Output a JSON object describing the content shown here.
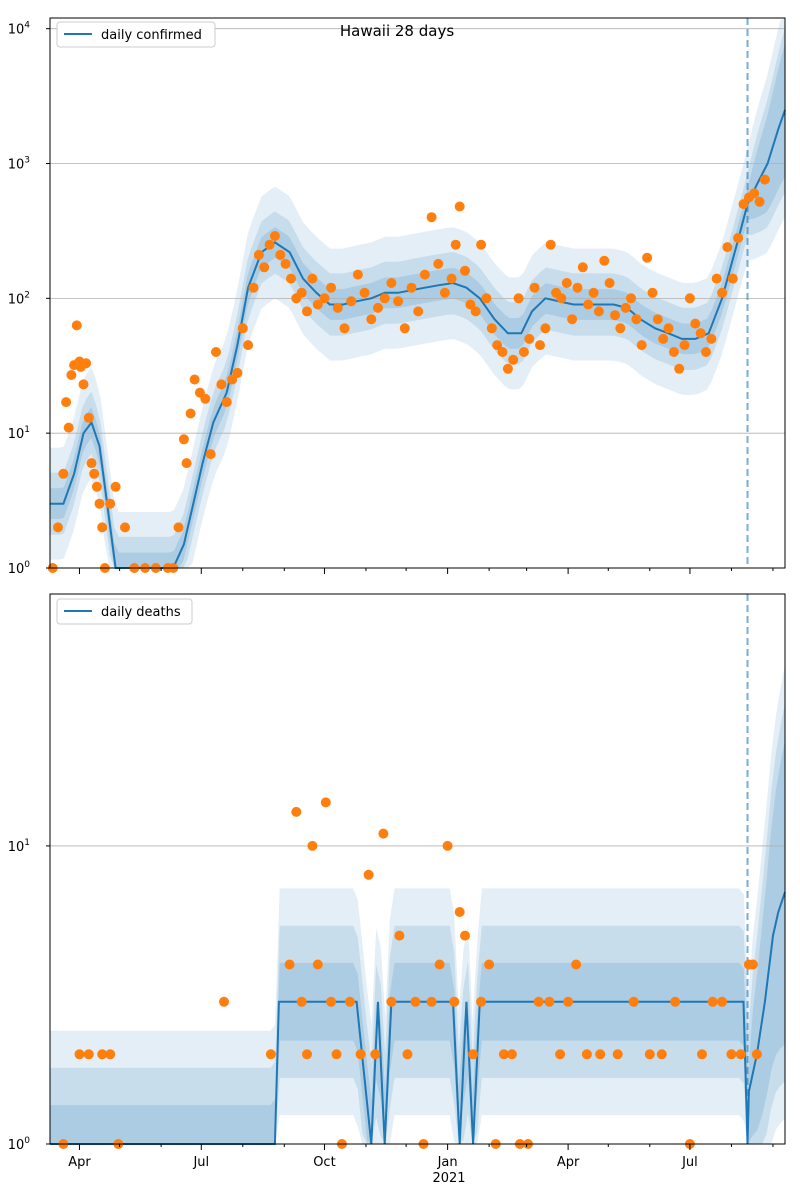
{
  "figure": {
    "title": "Hawaii 28 days",
    "colors": {
      "model": "#1f77b4",
      "observed": "#ff7f0e",
      "band": "#1f77b4",
      "grid": "#b0b0b0",
      "cutoff": "#1f77b4"
    },
    "x_tick_labels": [
      "Apr",
      "Jul",
      "Oct",
      "Jan",
      "Apr",
      "Jul"
    ],
    "x_secondary_label": "2021"
  },
  "chart_data": [
    {
      "type": "line",
      "title": "Hawaii 28 days",
      "legend": "daily confirmed",
      "legend_position": "top-left",
      "y_scale": "log",
      "ylim": [
        1,
        12000
      ],
      "y_tick_labels": [
        "10^0",
        "10^1",
        "10^2",
        "10^3",
        "10^4"
      ],
      "xlim": [
        "2020-03-10",
        "2021-09-10"
      ],
      "forecast_start": "2021-08-13",
      "grid": "horizontal",
      "model_line": {
        "x": [
          "2020-03-10",
          "2020-03-20",
          "2020-03-28",
          "2020-04-04",
          "2020-04-10",
          "2020-04-16",
          "2020-04-20",
          "2020-04-28",
          "2020-05-10",
          "2020-05-25",
          "2020-06-10",
          "2020-06-18",
          "2020-06-25",
          "2020-07-02",
          "2020-07-10",
          "2020-07-20",
          "2020-07-28",
          "2020-08-05",
          "2020-08-15",
          "2020-08-25",
          "2020-09-05",
          "2020-09-15",
          "2020-09-25",
          "2020-10-05",
          "2020-10-15",
          "2020-10-25",
          "2020-11-05",
          "2020-11-15",
          "2020-11-25",
          "2020-12-05",
          "2020-12-15",
          "2020-12-25",
          "2021-01-05",
          "2021-01-15",
          "2021-01-25",
          "2021-02-05",
          "2021-02-15",
          "2021-02-25",
          "2021-03-05",
          "2021-03-15",
          "2021-03-25",
          "2021-04-05",
          "2021-04-15",
          "2021-04-25",
          "2021-05-05",
          "2021-05-15",
          "2021-05-25",
          "2021-06-05",
          "2021-06-15",
          "2021-06-25",
          "2021-07-05",
          "2021-07-15",
          "2021-07-25",
          "2021-08-05",
          "2021-08-13",
          "2021-08-20",
          "2021-08-28",
          "2021-09-05",
          "2021-09-10"
        ],
        "y": [
          3,
          3,
          5,
          10,
          12,
          8,
          4,
          1,
          1,
          1,
          1,
          1.5,
          3,
          6,
          12,
          20,
          45,
          120,
          220,
          260,
          220,
          140,
          110,
          90,
          90,
          95,
          100,
          110,
          110,
          115,
          120,
          125,
          130,
          120,
          100,
          70,
          55,
          55,
          80,
          100,
          95,
          90,
          90,
          90,
          90,
          85,
          70,
          60,
          55,
          50,
          50,
          55,
          100,
          250,
          500,
          700,
          1000,
          1800,
          2500
        ]
      },
      "observed_points": {
        "x": [
          "2020-03-12",
          "2020-03-16",
          "2020-03-20",
          "2020-03-22",
          "2020-03-24",
          "2020-03-26",
          "2020-03-28",
          "2020-03-30",
          "2020-04-01",
          "2020-04-02",
          "2020-04-04",
          "2020-04-06",
          "2020-04-08",
          "2020-04-10",
          "2020-04-12",
          "2020-04-14",
          "2020-04-16",
          "2020-04-18",
          "2020-04-20",
          "2020-04-24",
          "2020-04-28",
          "2020-05-05",
          "2020-05-12",
          "2020-05-20",
          "2020-05-28",
          "2020-06-06",
          "2020-06-10",
          "2020-06-14",
          "2020-06-18",
          "2020-06-20",
          "2020-06-23",
          "2020-06-26",
          "2020-06-30",
          "2020-07-04",
          "2020-07-08",
          "2020-07-12",
          "2020-07-16",
          "2020-07-20",
          "2020-07-24",
          "2020-07-28",
          "2020-08-01",
          "2020-08-05",
          "2020-08-09",
          "2020-08-13",
          "2020-08-17",
          "2020-08-21",
          "2020-08-25",
          "2020-08-29",
          "2020-09-02",
          "2020-09-06",
          "2020-09-10",
          "2020-09-14",
          "2020-09-18",
          "2020-09-22",
          "2020-09-26",
          "2020-10-01",
          "2020-10-06",
          "2020-10-11",
          "2020-10-16",
          "2020-10-21",
          "2020-10-26",
          "2020-10-31",
          "2020-11-05",
          "2020-11-10",
          "2020-11-15",
          "2020-11-20",
          "2020-11-25",
          "2020-11-30",
          "2020-12-05",
          "2020-12-10",
          "2020-12-15",
          "2020-12-20",
          "2020-12-25",
          "2020-12-30",
          "2021-01-04",
          "2021-01-07",
          "2021-01-10",
          "2021-01-14",
          "2021-01-18",
          "2021-01-22",
          "2021-01-26",
          "2021-01-30",
          "2021-02-03",
          "2021-02-07",
          "2021-02-11",
          "2021-02-15",
          "2021-02-19",
          "2021-02-23",
          "2021-02-27",
          "2021-03-03",
          "2021-03-07",
          "2021-03-11",
          "2021-03-15",
          "2021-03-19",
          "2021-03-23",
          "2021-03-27",
          "2021-03-31",
          "2021-04-04",
          "2021-04-08",
          "2021-04-12",
          "2021-04-16",
          "2021-04-20",
          "2021-04-24",
          "2021-04-28",
          "2021-05-02",
          "2021-05-06",
          "2021-05-10",
          "2021-05-14",
          "2021-05-18",
          "2021-05-22",
          "2021-05-26",
          "2021-05-30",
          "2021-06-03",
          "2021-06-07",
          "2021-06-11",
          "2021-06-15",
          "2021-06-19",
          "2021-06-23",
          "2021-06-27",
          "2021-07-01",
          "2021-07-05",
          "2021-07-09",
          "2021-07-13",
          "2021-07-17",
          "2021-07-21",
          "2021-07-25",
          "2021-07-29",
          "2021-08-02",
          "2021-08-06",
          "2021-08-10",
          "2021-08-14",
          "2021-08-18",
          "2021-08-22",
          "2021-08-26"
        ],
        "y": [
          1,
          2,
          5,
          17,
          11,
          27,
          32,
          63,
          34,
          31,
          23,
          33,
          13,
          6,
          5,
          4,
          3,
          2,
          1,
          3,
          4,
          2,
          1,
          1,
          1,
          1,
          1,
          2,
          9,
          6,
          14,
          25,
          20,
          18,
          7,
          40,
          23,
          17,
          25,
          28,
          60,
          45,
          120,
          210,
          170,
          250,
          290,
          210,
          180,
          140,
          100,
          110,
          80,
          140,
          90,
          100,
          120,
          85,
          60,
          95,
          150,
          110,
          70,
          85,
          100,
          130,
          95,
          60,
          120,
          80,
          150,
          400,
          180,
          110,
          140,
          250,
          480,
          160,
          90,
          80,
          250,
          100,
          60,
          45,
          40,
          30,
          35,
          100,
          40,
          50,
          120,
          45,
          60,
          250,
          110,
          100,
          130,
          70,
          120,
          170,
          90,
          110,
          80,
          190,
          130,
          75,
          60,
          85,
          100,
          70,
          45,
          200,
          110,
          70,
          50,
          60,
          40,
          30,
          45,
          100,
          65,
          55,
          40,
          50,
          140,
          110,
          240,
          140,
          280,
          500,
          560,
          600,
          520,
          760
        ]
      }
    },
    {
      "type": "line",
      "legend": "daily deaths",
      "legend_position": "top-left",
      "y_scale": "log",
      "ylim": [
        1,
        70
      ],
      "y_tick_labels": [
        "10^0",
        "10^1"
      ],
      "xlim": [
        "2020-03-10",
        "2021-09-10"
      ],
      "forecast_start": "2021-08-13",
      "grid": "horizontal",
      "model_line": {
        "x": [
          "2020-03-10",
          "2020-08-25",
          "2020-08-28",
          "2020-09-20",
          "2020-10-25",
          "2020-11-05",
          "2020-11-10",
          "2020-11-15",
          "2020-11-20",
          "2020-12-10",
          "2021-01-05",
          "2021-01-10",
          "2021-01-15",
          "2021-01-20",
          "2021-01-25",
          "2021-02-01",
          "2021-03-20",
          "2021-06-01",
          "2021-08-10",
          "2021-08-13",
          "2021-08-14",
          "2021-08-20",
          "2021-08-26",
          "2021-09-01",
          "2021-09-05",
          "2021-09-10"
        ],
        "y": [
          1,
          1,
          3,
          3,
          3,
          1,
          3,
          1,
          3,
          3,
          3,
          1,
          3,
          1,
          3,
          3,
          3,
          3,
          3,
          1,
          1.5,
          2,
          3,
          5,
          6,
          7
        ]
      },
      "observed_points": {
        "x": [
          "2020-03-20",
          "2020-04-01",
          "2020-04-08",
          "2020-04-18",
          "2020-04-24",
          "2020-04-30",
          "2020-07-18",
          "2020-08-22",
          "2020-09-05",
          "2020-09-10",
          "2020-09-14",
          "2020-09-18",
          "2020-09-22",
          "2020-09-26",
          "2020-10-02",
          "2020-10-06",
          "2020-10-10",
          "2020-10-14",
          "2020-10-20",
          "2020-10-28",
          "2020-11-03",
          "2020-11-08",
          "2020-11-14",
          "2020-11-20",
          "2020-11-26",
          "2020-12-02",
          "2020-12-08",
          "2020-12-14",
          "2020-12-20",
          "2020-12-26",
          "2021-01-01",
          "2021-01-06",
          "2021-01-10",
          "2021-01-14",
          "2021-01-20",
          "2021-01-26",
          "2021-02-01",
          "2021-02-06",
          "2021-02-12",
          "2021-02-18",
          "2021-02-24",
          "2021-03-02",
          "2021-03-10",
          "2021-03-18",
          "2021-03-26",
          "2021-04-01",
          "2021-04-07",
          "2021-04-15",
          "2021-04-25",
          "2021-05-08",
          "2021-05-20",
          "2021-06-01",
          "2021-06-10",
          "2021-06-20",
          "2021-07-01",
          "2021-07-10",
          "2021-07-18",
          "2021-07-25",
          "2021-08-01",
          "2021-08-08",
          "2021-08-14",
          "2021-08-17",
          "2021-08-20"
        ],
        "y": [
          1,
          2,
          2,
          2,
          2,
          1,
          3,
          2,
          4,
          13,
          3,
          2,
          10,
          4,
          14,
          3,
          2,
          1,
          3,
          2,
          8,
          2,
          11,
          3,
          5,
          2,
          3,
          1,
          3,
          4,
          10,
          3,
          6,
          5,
          2,
          3,
          4,
          1,
          2,
          2,
          1,
          1,
          3,
          3,
          2,
          3,
          4,
          2,
          2,
          2,
          3,
          2,
          2,
          3,
          1,
          2,
          3,
          3,
          2,
          2,
          4,
          4,
          2
        ]
      }
    }
  ]
}
